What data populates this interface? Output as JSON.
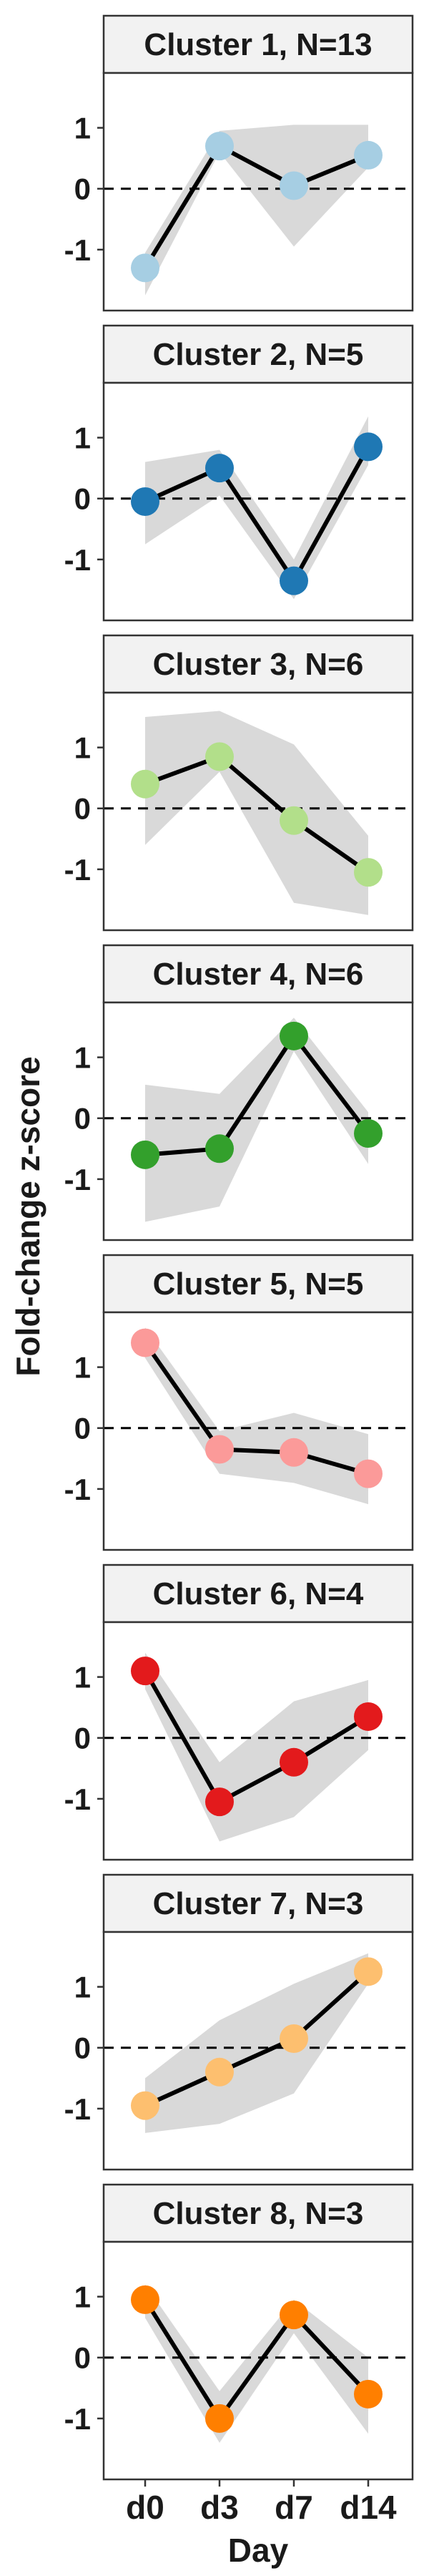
{
  "chart_data": {
    "type": "line",
    "ylabel": "Fold-change z-score",
    "xlabel": "Day",
    "categories": [
      "d0",
      "d3",
      "d7",
      "d14"
    ],
    "ylim": [
      -2.0,
      1.9
    ],
    "yticks": [
      1,
      0,
      -1
    ],
    "ytick_labels": [
      "1",
      "0",
      "-1"
    ],
    "reference_line": {
      "y": 0,
      "style": "dashed"
    },
    "ribbon": "min-max range of cluster members",
    "grid": false,
    "panels": [
      {
        "title": "Cluster 1, N=13",
        "color": "#a6cee3",
        "values": [
          -1.3,
          0.7,
          0.05,
          0.55
        ],
        "ribbon_low": [
          -1.75,
          0.6,
          -0.95,
          0.35
        ],
        "ribbon_high": [
          -1.05,
          0.95,
          1.05,
          1.05
        ]
      },
      {
        "title": "Cluster 2, N=5",
        "color": "#1f78b4",
        "values": [
          -0.05,
          0.5,
          -1.35,
          0.85
        ],
        "ribbon_low": [
          -0.75,
          0.05,
          -1.65,
          0.55
        ],
        "ribbon_high": [
          0.6,
          0.8,
          -1.0,
          1.35
        ]
      },
      {
        "title": "Cluster 3, N=6",
        "color": "#b2df8a",
        "values": [
          0.4,
          0.85,
          -0.2,
          -1.05
        ],
        "ribbon_low": [
          -0.6,
          0.6,
          -1.55,
          -1.75
        ],
        "ribbon_high": [
          1.5,
          1.6,
          1.05,
          -0.45
        ]
      },
      {
        "title": "Cluster 4, N=6",
        "color": "#33a02c",
        "values": [
          -0.6,
          -0.5,
          1.35,
          -0.25
        ],
        "ribbon_low": [
          -1.7,
          -1.45,
          1.1,
          -0.75
        ],
        "ribbon_high": [
          0.55,
          0.4,
          1.65,
          0.1
        ]
      },
      {
        "title": "Cluster 5, N=5",
        "color": "#fb9a99",
        "values": [
          1.4,
          -0.35,
          -0.4,
          -0.75
        ],
        "ribbon_low": [
          1.15,
          -0.75,
          -0.9,
          -1.25
        ],
        "ribbon_high": [
          1.65,
          -0.05,
          0.25,
          -0.1
        ]
      },
      {
        "title": "Cluster 6, N=4",
        "color": "#e31a1c",
        "values": [
          1.1,
          -1.05,
          -0.4,
          0.35
        ],
        "ribbon_low": [
          0.8,
          -1.7,
          -1.3,
          -0.2
        ],
        "ribbon_high": [
          1.4,
          -0.4,
          0.6,
          0.95
        ]
      },
      {
        "title": "Cluster 7, N=3",
        "color": "#fdbf6f",
        "values": [
          -0.95,
          -0.4,
          0.15,
          1.25
        ],
        "ribbon_low": [
          -1.4,
          -1.25,
          -0.75,
          1.05
        ],
        "ribbon_high": [
          -0.5,
          0.45,
          1.05,
          1.55
        ]
      },
      {
        "title": "Cluster 8, N=3",
        "color": "#ff7f00",
        "values": [
          0.95,
          -1.0,
          0.7,
          -0.6
        ],
        "ribbon_low": [
          0.65,
          -1.4,
          0.4,
          -1.25
        ],
        "ribbon_high": [
          1.2,
          -0.55,
          0.95,
          0.0
        ]
      }
    ]
  }
}
